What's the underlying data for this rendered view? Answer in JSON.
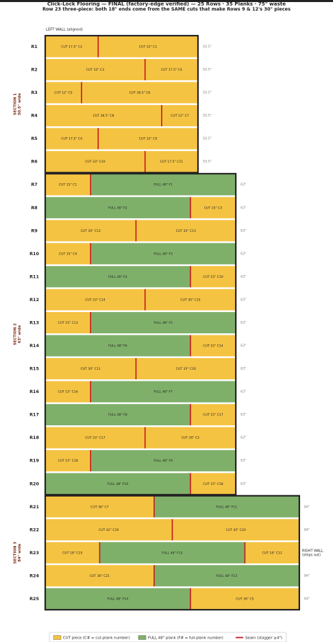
{
  "title": "Click-Lock Flooring — FINAL (factory-edge verified)  —  25 Rows · 35 Planks · 75\" waste",
  "subtitle": "Row 23 three-piece: both 18\" ends come from the SAME cuts that make Rows 9 & 12's 30\" pieces",
  "left_wall_label": "LEFT WALL (aligned)",
  "seam_color": "#c4161c",
  "sections": [
    {
      "title": "SECTION 1",
      "subtitle": "50.5\" wide",
      "rows": [
        {
          "label": "R1",
          "width_label": "50.5\"",
          "pieces": [
            {
              "label": "CUT 17.5\"  C2",
              "length": 17.5,
              "color": "#f5c342"
            },
            {
              "label": "CUT 33\"  C1",
              "length": 33,
              "color": "#f5c342"
            }
          ]
        },
        {
          "label": "R2",
          "width_label": "50.5\"",
          "pieces": [
            {
              "label": "CUT 33\"  C3",
              "length": 33,
              "color": "#f5c342"
            },
            {
              "label": "CUT 17.5\"  C4",
              "length": 17.5,
              "color": "#f5c342"
            }
          ]
        },
        {
          "label": "R3",
          "width_label": "50.5\"",
          "pieces": [
            {
              "label": "CUT 12\"  C5",
              "length": 12,
              "color": "#f5c342"
            },
            {
              "label": "CUT 38.5\"  C6",
              "length": 38.5,
              "color": "#f5c342"
            }
          ]
        },
        {
          "label": "R4",
          "width_label": "50.5\"",
          "pieces": [
            {
              "label": "CUT 38.5\"  C8",
              "length": 38.5,
              "color": "#f5c342"
            },
            {
              "label": "CUT 12\"  C7",
              "length": 12,
              "color": "#f5c342"
            }
          ]
        },
        {
          "label": "R5",
          "width_label": "50.5\"",
          "pieces": [
            {
              "label": "CUT 17.5\"  C4",
              "length": 17.5,
              "color": "#f5c342"
            },
            {
              "label": "CUT 33\"  C9",
              "length": 33,
              "color": "#f5c342"
            }
          ]
        },
        {
          "label": "R6",
          "width_label": "50.5\"",
          "pieces": [
            {
              "label": "CUT 33\"  C10",
              "length": 33,
              "color": "#f5c342"
            },
            {
              "label": "CUT 17.5\"  C11",
              "length": 17.5,
              "color": "#f5c342"
            }
          ]
        }
      ]
    },
    {
      "title": "SECTION 2",
      "subtitle": "63\" wide",
      "rows": [
        {
          "label": "R7",
          "width_label": "63\"",
          "pieces": [
            {
              "label": "CUT 15\"  C1",
              "length": 15,
              "color": "#f5c342"
            },
            {
              "label": "FULL 48\"  F1",
              "length": 48,
              "color": "#7fb06a"
            }
          ]
        },
        {
          "label": "R8",
          "width_label": "63\"",
          "pieces": [
            {
              "label": "FULL 48\"  F2",
              "length": 48,
              "color": "#7fb06a"
            },
            {
              "label": "CUT 15\"  C3",
              "length": 15,
              "color": "#f5c342"
            }
          ]
        },
        {
          "label": "R9",
          "width_label": "63\"",
          "pieces": [
            {
              "label": "CUT 30\"  C12",
              "length": 30,
              "color": "#f5c342"
            },
            {
              "label": "CUT 33\"  C13",
              "length": 33,
              "color": "#f5c342"
            }
          ]
        },
        {
          "label": "R10",
          "width_label": "63\"",
          "pieces": [
            {
              "label": "CUT 15\"  C9",
              "length": 15,
              "color": "#f5c342"
            },
            {
              "label": "FULL 48\"  F3",
              "length": 48,
              "color": "#7fb06a"
            }
          ]
        },
        {
          "label": "R11",
          "width_label": "63\"",
          "pieces": [
            {
              "label": "FULL 48\"  F4",
              "length": 48,
              "color": "#7fb06a"
            },
            {
              "label": "CUT 15\"  C10",
              "length": 15,
              "color": "#f5c342"
            }
          ]
        },
        {
          "label": "R12",
          "width_label": "63\"",
          "pieces": [
            {
              "label": "CUT 33\"  C14",
              "length": 33,
              "color": "#f5c342"
            },
            {
              "label": "CUT 30\"  C15",
              "length": 30,
              "color": "#f5c342"
            }
          ]
        },
        {
          "label": "R13",
          "width_label": "63\"",
          "pieces": [
            {
              "label": "CUT 15\"  C13",
              "length": 15,
              "color": "#f5c342"
            },
            {
              "label": "FULL 48\"  F5",
              "length": 48,
              "color": "#7fb06a"
            }
          ]
        },
        {
          "label": "R14",
          "width_label": "63\"",
          "pieces": [
            {
              "label": "FULL 48\"  F6",
              "length": 48,
              "color": "#7fb06a"
            },
            {
              "label": "CUT 15\"  C14",
              "length": 15,
              "color": "#f5c342"
            }
          ]
        },
        {
          "label": "R15",
          "width_label": "63\"",
          "pieces": [
            {
              "label": "CUT 30\"  C11",
              "length": 30,
              "color": "#f5c342"
            },
            {
              "label": "CUT 33\"  C16",
              "length": 33,
              "color": "#f5c342"
            }
          ]
        },
        {
          "label": "R16",
          "width_label": "63\"",
          "pieces": [
            {
              "label": "CUT 15\"  C16",
              "length": 15,
              "color": "#f5c342"
            },
            {
              "label": "FULL 48\"  F7",
              "length": 48,
              "color": "#7fb06a"
            }
          ]
        },
        {
          "label": "R17",
          "width_label": "63\"",
          "pieces": [
            {
              "label": "FULL 48\"  F8",
              "length": 48,
              "color": "#7fb06a"
            },
            {
              "label": "CUT 15\"  C17",
              "length": 15,
              "color": "#f5c342"
            }
          ]
        },
        {
          "label": "R18",
          "width_label": "63\"",
          "pieces": [
            {
              "label": "CUT 33\"  C17",
              "length": 33,
              "color": "#f5c342"
            },
            {
              "label": "CUT 30\"  C2",
              "length": 30,
              "color": "#f5c342"
            }
          ]
        },
        {
          "label": "R19",
          "width_label": "63\"",
          "pieces": [
            {
              "label": "CUT 15\"  C18",
              "length": 15,
              "color": "#f5c342"
            },
            {
              "label": "FULL 48\"  F9",
              "length": 48,
              "color": "#7fb06a"
            }
          ]
        },
        {
          "label": "R20",
          "width_label": "63\"",
          "pieces": [
            {
              "label": "FULL 48\"  F10",
              "length": 48,
              "color": "#7fb06a"
            },
            {
              "label": "CUT 15\"  C18",
              "length": 15,
              "color": "#f5c342"
            }
          ]
        }
      ]
    },
    {
      "title": "SECTION 3",
      "subtitle": "84\" wide",
      "rows": [
        {
          "label": "R21",
          "width_label": "84\"",
          "pieces": [
            {
              "label": "CUT 36\"  C7",
              "length": 36,
              "color": "#f5c342"
            },
            {
              "label": "FULL 48\"  F11",
              "length": 48,
              "color": "#7fb06a"
            }
          ]
        },
        {
          "label": "R22",
          "width_label": "84\"",
          "pieces": [
            {
              "label": "CUT 42\"  C19",
              "length": 42,
              "color": "#f5c342"
            },
            {
              "label": "CUT 42\"  C20",
              "length": 42,
              "color": "#f5c342"
            }
          ]
        },
        {
          "label": "R23",
          "note": [
            "RIGHT WALL",
            "(steps out)"
          ],
          "pieces": [
            {
              "label": "CUT 18\"  C15",
              "length": 18,
              "color": "#f5c342"
            },
            {
              "label": "FULL 48\"  F12",
              "length": 48,
              "color": "#7fb06a"
            },
            {
              "label": "CUT 18\"  C12",
              "length": 18,
              "color": "#f5c342"
            }
          ]
        },
        {
          "label": "R24",
          "width_label": "84\"",
          "pieces": [
            {
              "label": "CUT 36\"  C21",
              "length": 36,
              "color": "#f5c342"
            },
            {
              "label": "FULL 48\"  F13",
              "length": 48,
              "color": "#7fb06a"
            }
          ]
        },
        {
          "label": "R25",
          "width_label": "84\"",
          "pieces": [
            {
              "label": "FULL 48\"  F14",
              "length": 48,
              "color": "#7fb06a"
            },
            {
              "label": "CUT 36\"  C5",
              "length": 36,
              "color": "#f5c342"
            }
          ]
        }
      ]
    }
  ],
  "legend": [
    {
      "label": "CUT piece (C# = cut-plank number)",
      "color": "#f5c342"
    },
    {
      "label": "FULL 48\" plank (F# = full-plank number)",
      "color": "#7fb06a"
    },
    {
      "label": "Seam (stagger ≥4\")",
      "color": "#c4161c"
    }
  ]
}
